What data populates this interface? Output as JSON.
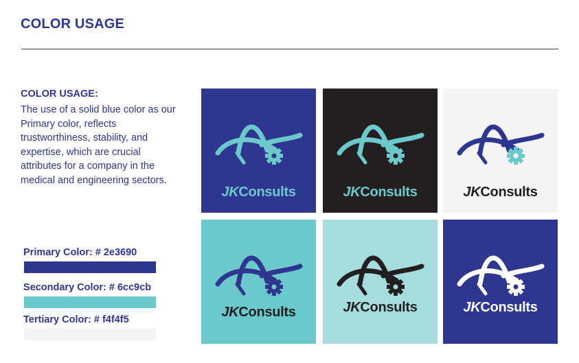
{
  "page": {
    "title": "COLOR USAGE"
  },
  "usage": {
    "heading": "COLOR USAGE:",
    "body": "The use of a solid blue color as our Primary color, reflects trustworthiness, stability, and expertise, which are crucial attributes for a company in the medical and engineering sectors."
  },
  "palette": {
    "primary": {
      "label": "Primary Color: # 2e3690",
      "hex": "#2e3690"
    },
    "secondary": {
      "label": "Secondary Color: # 6cc9cb",
      "hex": "#6cc9cb"
    },
    "tertiary": {
      "label": "Tertiary Color: # f4f4f5",
      "hex": "#f4f4f5"
    }
  },
  "logo": {
    "prefix": "JK",
    "suffix": "Consults"
  },
  "tiles": [
    {
      "bg": "#2e3690",
      "arcs": "#6cc9cb",
      "gear": "#6cc9cb",
      "text": "#6cc9cb"
    },
    {
      "bg": "#231f20",
      "arcs": "#6cc9cb",
      "gear": "#6cc9cb",
      "text": "#6cc9cb"
    },
    {
      "bg": "#f4f4f5",
      "arcs": "#2e3690",
      "gear": "#6cc9cb",
      "text": "#231f20"
    },
    {
      "bg": "#6cc9cb",
      "arcs": "#2e3690",
      "gear": "#2e3690",
      "text": "#231f20"
    },
    {
      "bg": "#a6dcde",
      "arcs": "#231f20",
      "gear": "#231f20",
      "text": "#231f20"
    },
    {
      "bg": "#2e3690",
      "arcs": "#ffffff",
      "gear": "#ffffff",
      "text": "#ffffff"
    }
  ]
}
